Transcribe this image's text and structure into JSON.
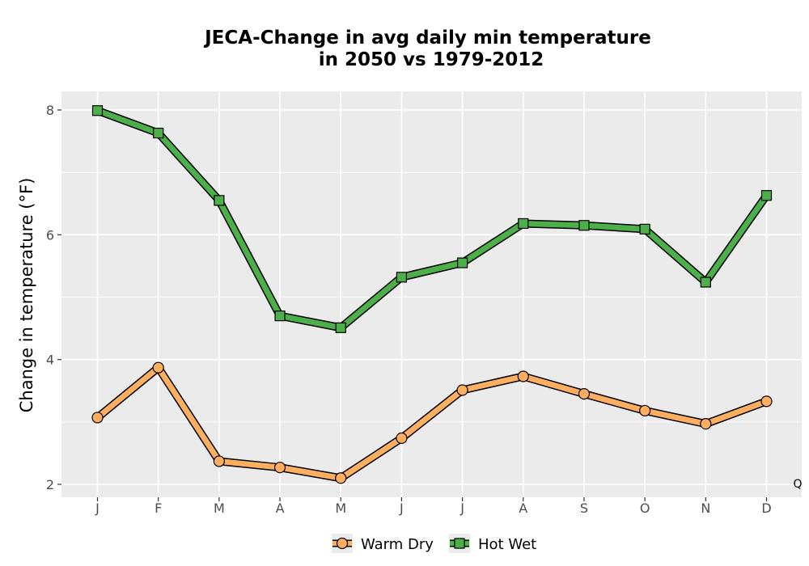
{
  "chart_data": {
    "type": "line",
    "title_line1": "JECA-Change in avg daily min temperature",
    "title_line2": "in 2050 vs 1979-2012",
    "xlabel": "",
    "ylabel": "Change in temperature (°F)",
    "categories": [
      "J",
      "F",
      "M",
      "A",
      "M",
      "J",
      "J",
      "A",
      "S",
      "O",
      "N",
      "D"
    ],
    "ylim": [
      1.8,
      8.3
    ],
    "yticks": [
      2,
      4,
      6,
      8
    ],
    "grid": true,
    "legend_position": "bottom",
    "corner_note": "Q",
    "series": [
      {
        "name": "Warm Dry",
        "marker": "circle",
        "color": "#fdae61",
        "values": [
          3.07,
          3.87,
          2.37,
          2.27,
          2.1,
          2.74,
          3.51,
          3.73,
          3.45,
          3.18,
          2.97,
          3.33
        ]
      },
      {
        "name": "Hot Wet",
        "marker": "square",
        "color": "#4daf4a",
        "values": [
          7.99,
          7.63,
          6.55,
          4.7,
          4.51,
          5.32,
          5.55,
          6.18,
          6.15,
          6.09,
          5.24,
          6.63
        ]
      }
    ]
  }
}
